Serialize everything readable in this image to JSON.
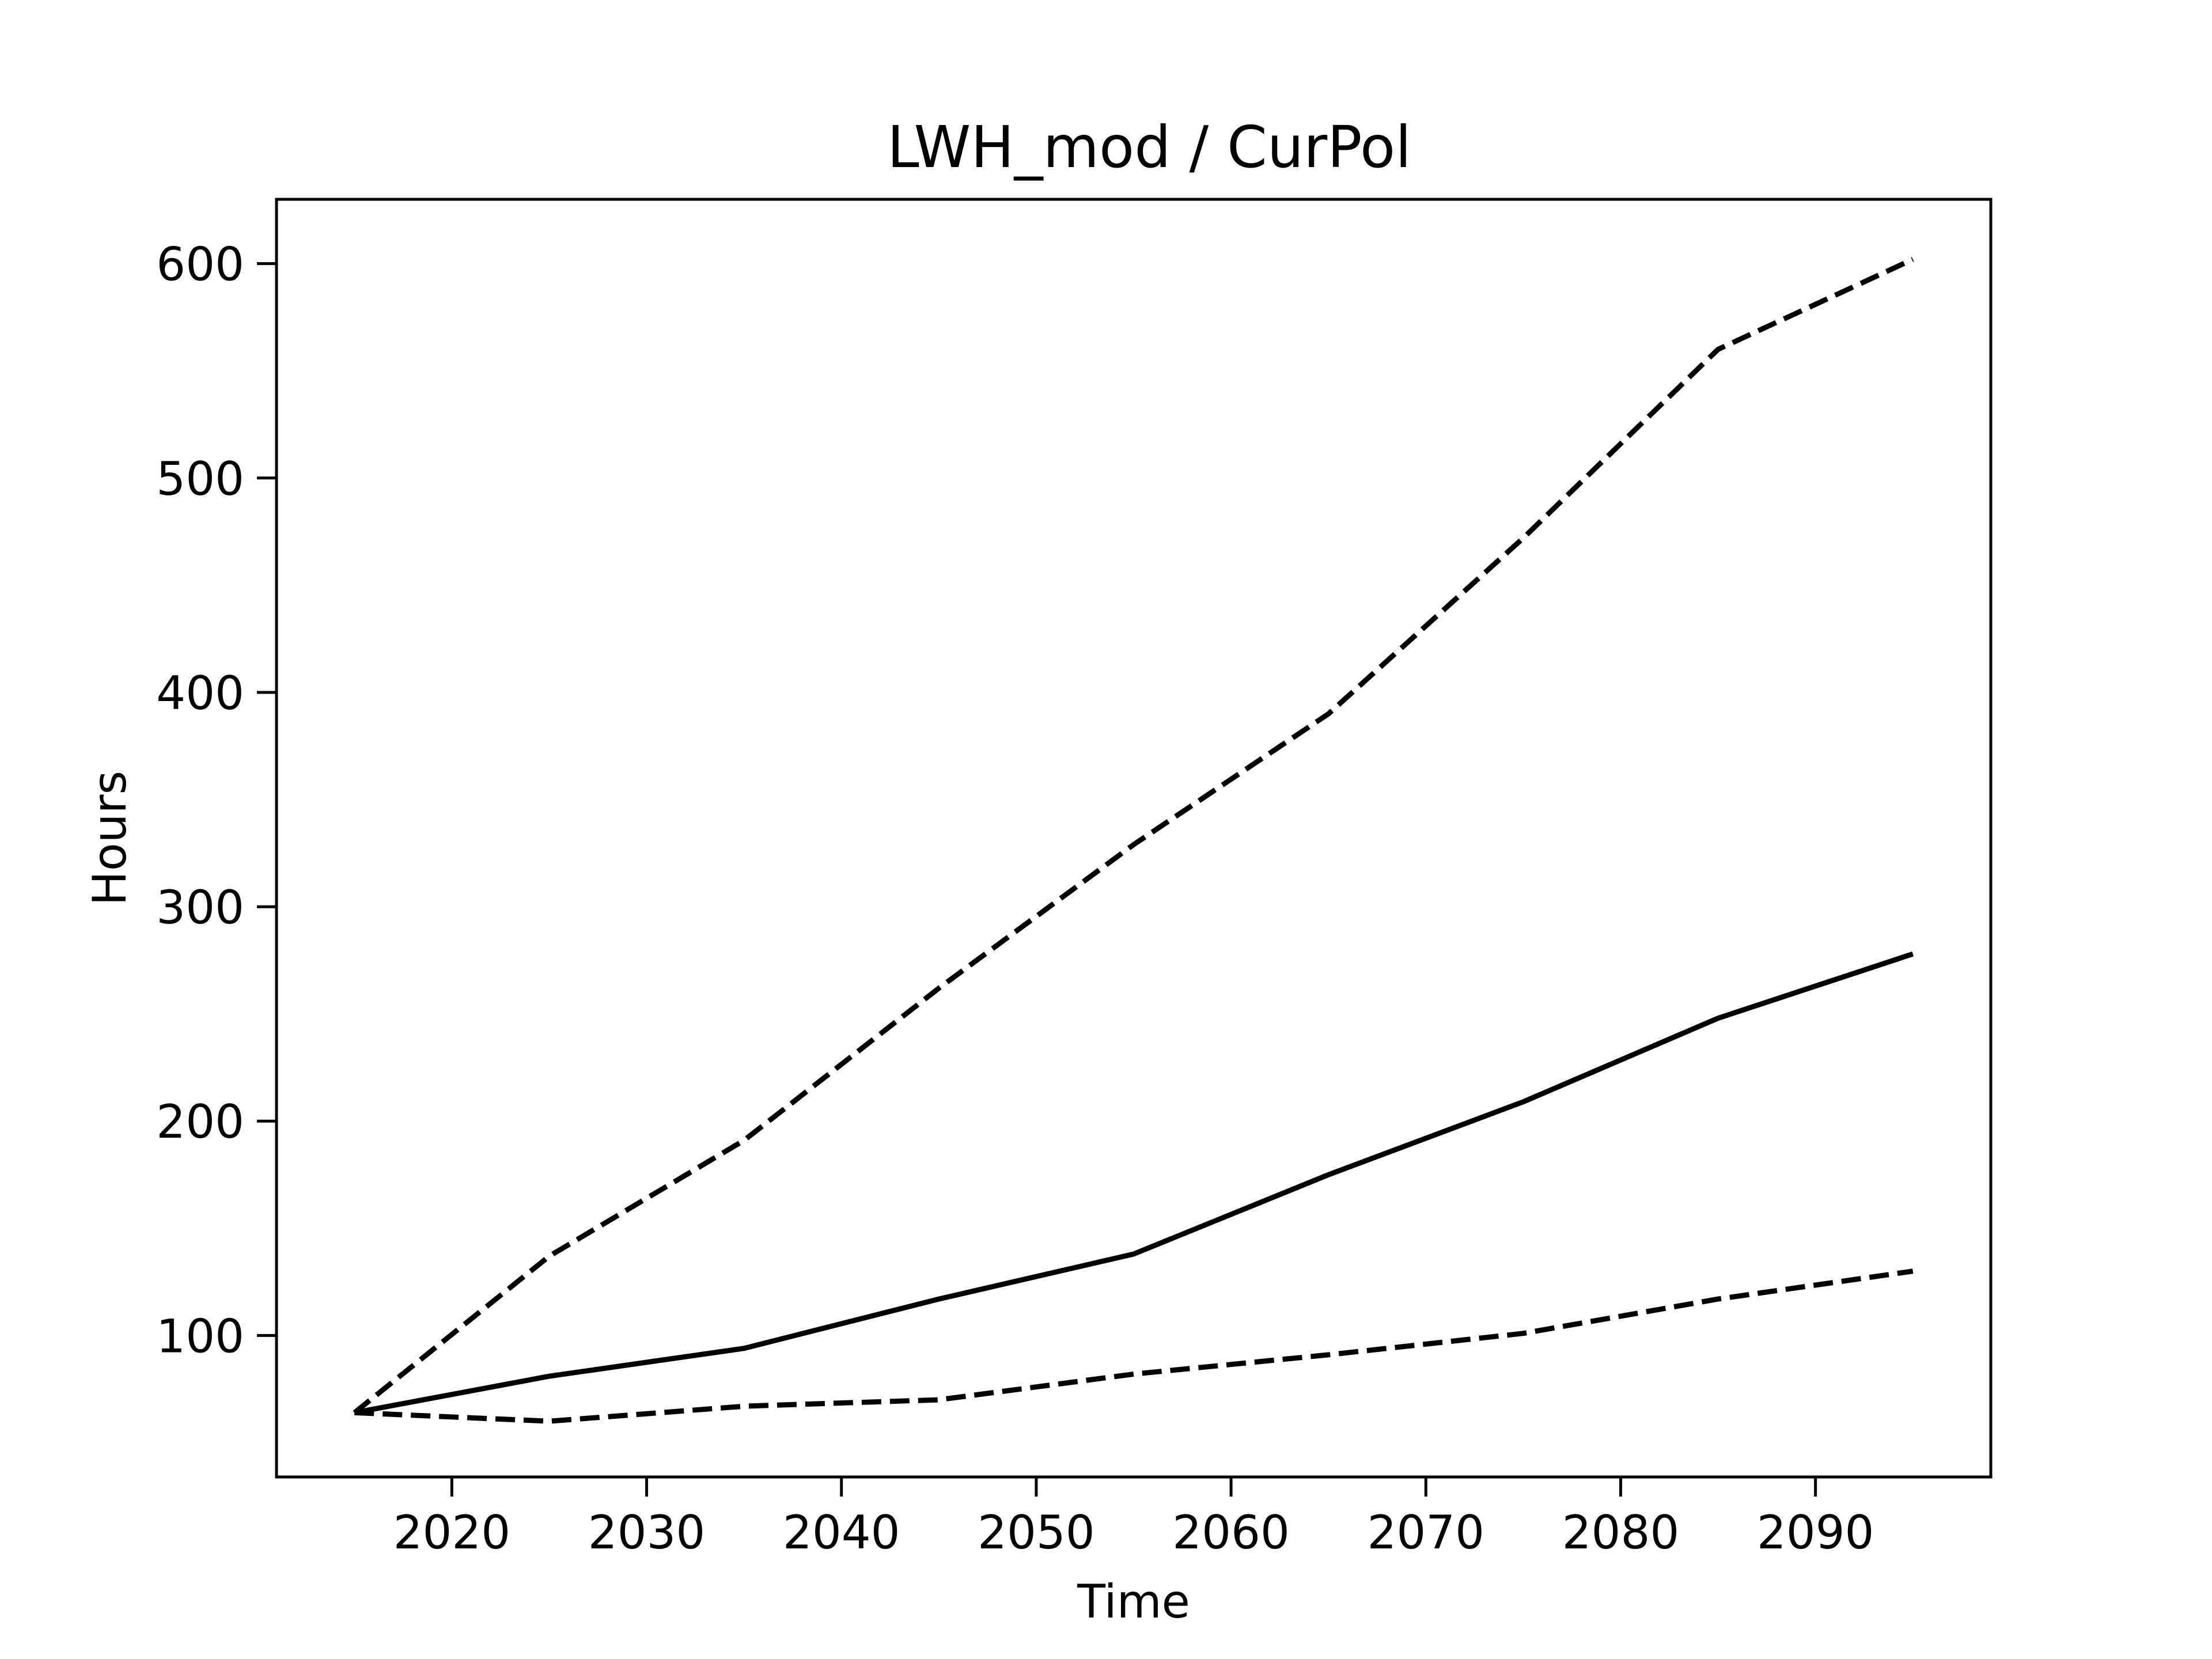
{
  "chart_data": {
    "type": "line",
    "title": "LWH_mod / CurPol",
    "xlabel": "Time",
    "ylabel": "Hours",
    "xlim": [
      2011,
      2099
    ],
    "ylim": [
      34,
      630
    ],
    "xticks": [
      2020,
      2030,
      2040,
      2050,
      2060,
      2070,
      2080,
      2090
    ],
    "yticks": [
      100,
      200,
      300,
      400,
      500,
      600
    ],
    "grid": false,
    "legend": "none",
    "x": [
      2015,
      2025,
      2035,
      2045,
      2055,
      2065,
      2075,
      2085,
      2095
    ],
    "series": [
      {
        "style": "dashed",
        "color": "#000000",
        "values": [
          64,
          137,
          191,
          262,
          329,
          390,
          472,
          560,
          602
        ]
      },
      {
        "style": "solid",
        "color": "#000000",
        "values": [
          64,
          81,
          94,
          117,
          138,
          175,
          209,
          248,
          278
        ]
      },
      {
        "style": "dashed",
        "color": "#000000",
        "values": [
          64,
          60,
          67,
          70,
          82,
          91,
          101,
          117,
          130
        ]
      }
    ]
  }
}
